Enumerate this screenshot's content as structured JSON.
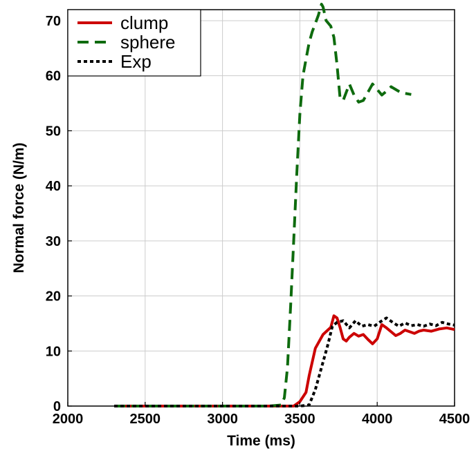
{
  "chart_data": {
    "type": "line",
    "title": "",
    "xlabel": "Time (ms)",
    "ylabel": "Normal force (N/m)",
    "xlim": [
      2000,
      4500
    ],
    "ylim": [
      0,
      72
    ],
    "xticks": [
      2000,
      2500,
      3000,
      3500,
      4000,
      4500
    ],
    "yticks": [
      0,
      10,
      20,
      30,
      40,
      50,
      60,
      70
    ],
    "grid": true,
    "legend_position": "top-left",
    "series": [
      {
        "name": "clump",
        "color": "#cc0000",
        "dash": "solid",
        "x": [
          2300,
          2600,
          3000,
          3300,
          3460,
          3500,
          3540,
          3560,
          3600,
          3650,
          3700,
          3720,
          3740,
          3760,
          3780,
          3800,
          3820,
          3850,
          3880,
          3910,
          3940,
          3970,
          4000,
          4030,
          4060,
          4090,
          4120,
          4150,
          4180,
          4210,
          4240,
          4270,
          4300,
          4350,
          4400,
          4450,
          4500
        ],
        "y": [
          0,
          0,
          0,
          0,
          0,
          0.8,
          2.5,
          5.5,
          10.5,
          13,
          14.3,
          16.4,
          16,
          14.3,
          12.2,
          11.8,
          12.5,
          13.2,
          12.7,
          13,
          12.1,
          11.3,
          12.2,
          14.8,
          14.2,
          13.5,
          12.8,
          13.2,
          13.8,
          13.5,
          13.2,
          13.6,
          13.8,
          13.6,
          14,
          14.2,
          13.9
        ]
      },
      {
        "name": "sphere",
        "color": "#0e6b0e",
        "dash": "dashed",
        "x": [
          2300,
          2600,
          3000,
          3300,
          3380,
          3400,
          3420,
          3440,
          3460,
          3480,
          3500,
          3520,
          3540,
          3560,
          3580,
          3600,
          3620,
          3640,
          3650,
          3670,
          3700,
          3720,
          3740,
          3760,
          3780,
          3800,
          3820,
          3850,
          3880,
          3910,
          3940,
          3970,
          4000,
          4030,
          4060,
          4090,
          4120,
          4150,
          4180,
          4220
        ],
        "y": [
          0,
          0,
          0,
          0,
          0.2,
          1.5,
          7,
          18,
          30,
          42,
          53,
          60,
          63,
          66,
          68,
          69.5,
          71,
          73,
          72.5,
          70,
          69,
          67,
          62,
          56,
          55.5,
          57,
          58.5,
          56.5,
          55.2,
          55.5,
          57,
          58.5,
          57.5,
          56.5,
          57.2,
          58,
          57.5,
          57,
          56.8,
          56.6
        ]
      },
      {
        "name": "Exp",
        "color": "#000000",
        "dash": "dotted",
        "x": [
          2300,
          2600,
          3000,
          3300,
          3500,
          3560,
          3600,
          3640,
          3680,
          3710,
          3740,
          3780,
          3820,
          3860,
          3900,
          3940,
          3980,
          4020,
          4060,
          4100,
          4140,
          4180,
          4220,
          4260,
          4300,
          4340,
          4380,
          4420,
          4460,
          4500
        ],
        "y": [
          0,
          0,
          0,
          0,
          0,
          0.2,
          3,
          7,
          11,
          14.5,
          15.2,
          15.5,
          14.2,
          15.5,
          14.5,
          14.8,
          14.5,
          15.3,
          16,
          15.2,
          14.5,
          15.1,
          14.6,
          14.8,
          14.5,
          14.9,
          14.6,
          15.2,
          14.9,
          14.7
        ]
      }
    ]
  }
}
